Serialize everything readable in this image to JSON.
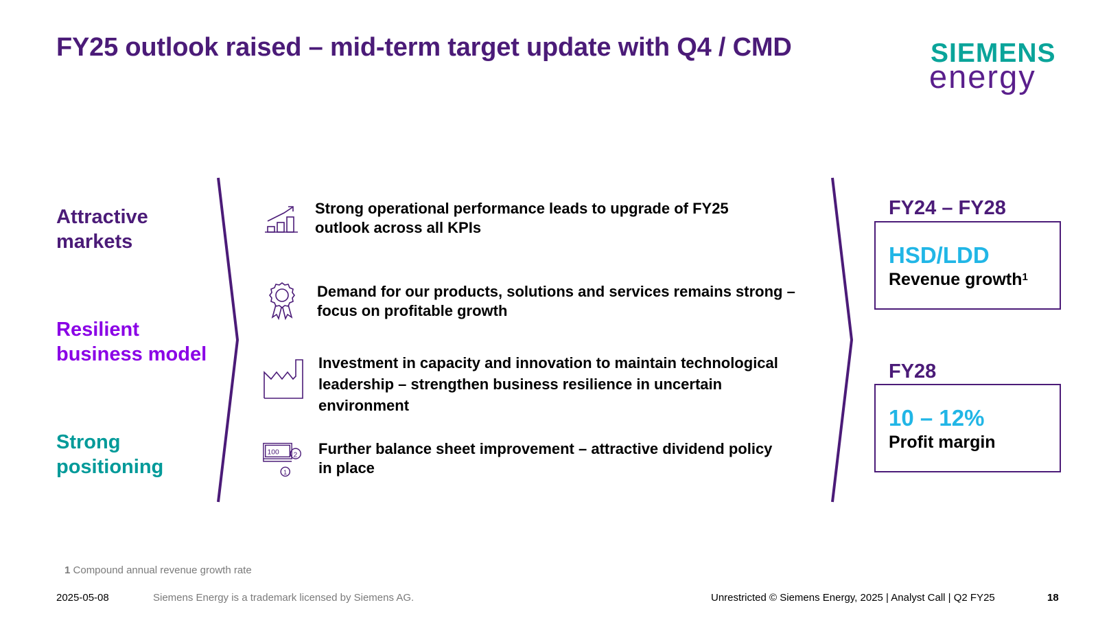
{
  "title": "FY25 outlook raised – mid-term target update with Q4 / CMD",
  "logo": {
    "line1": "SIEMENS",
    "line2": "energy",
    "color_teal": "#0aa49a",
    "color_purple": "#5a1f8c"
  },
  "pillars": [
    {
      "line1": "Attractive",
      "line2": "markets",
      "color": "#4b1b78"
    },
    {
      "line1": "Resilient",
      "line2": "business model",
      "color": "#8a00e6"
    },
    {
      "line1": "Strong",
      "line2": "positioning",
      "color": "#009a99"
    }
  ],
  "bullets": [
    {
      "icon": "growth-chart-icon",
      "line1": "Strong operational performance leads to upgrade of FY25",
      "line2": "outlook across all KPIs"
    },
    {
      "icon": "award-rosette-icon",
      "line1": "Demand for our products, solutions and services remains strong –",
      "line2": "focus on profitable growth"
    },
    {
      "icon": "factory-icon",
      "line1": "Investment in capacity and innovation to maintain technological",
      "line2": "leadership – strengthen business resilience in uncertain",
      "line3": "environment"
    },
    {
      "icon": "money-coins-icon",
      "line1": "Further balance sheet improvement – attractive dividend policy",
      "line2": "in place",
      "banknote_value": "100",
      "coin1": "2",
      "coin2": "1"
    }
  ],
  "kpis": [
    {
      "period": "FY24 – FY28",
      "value": "HSD/LDD",
      "label": "Revenue growth",
      "sup": "1"
    },
    {
      "period": "FY28",
      "value": "10 – 12%",
      "label": "Profit margin"
    }
  ],
  "footnote": {
    "number": "1",
    "text": "Compound annual revenue growth rate"
  },
  "footer": {
    "date": "2025-05-08",
    "trademark": "Siemens Energy is a trademark licensed by Siemens AG.",
    "right": "Unrestricted © Siemens Energy, 2025 | Analyst Call | Q2 FY25",
    "page": "18"
  },
  "colors": {
    "purple": "#4b1b78",
    "violet": "#8a00e6",
    "teal": "#009a99",
    "cyan": "#21b6e6"
  }
}
